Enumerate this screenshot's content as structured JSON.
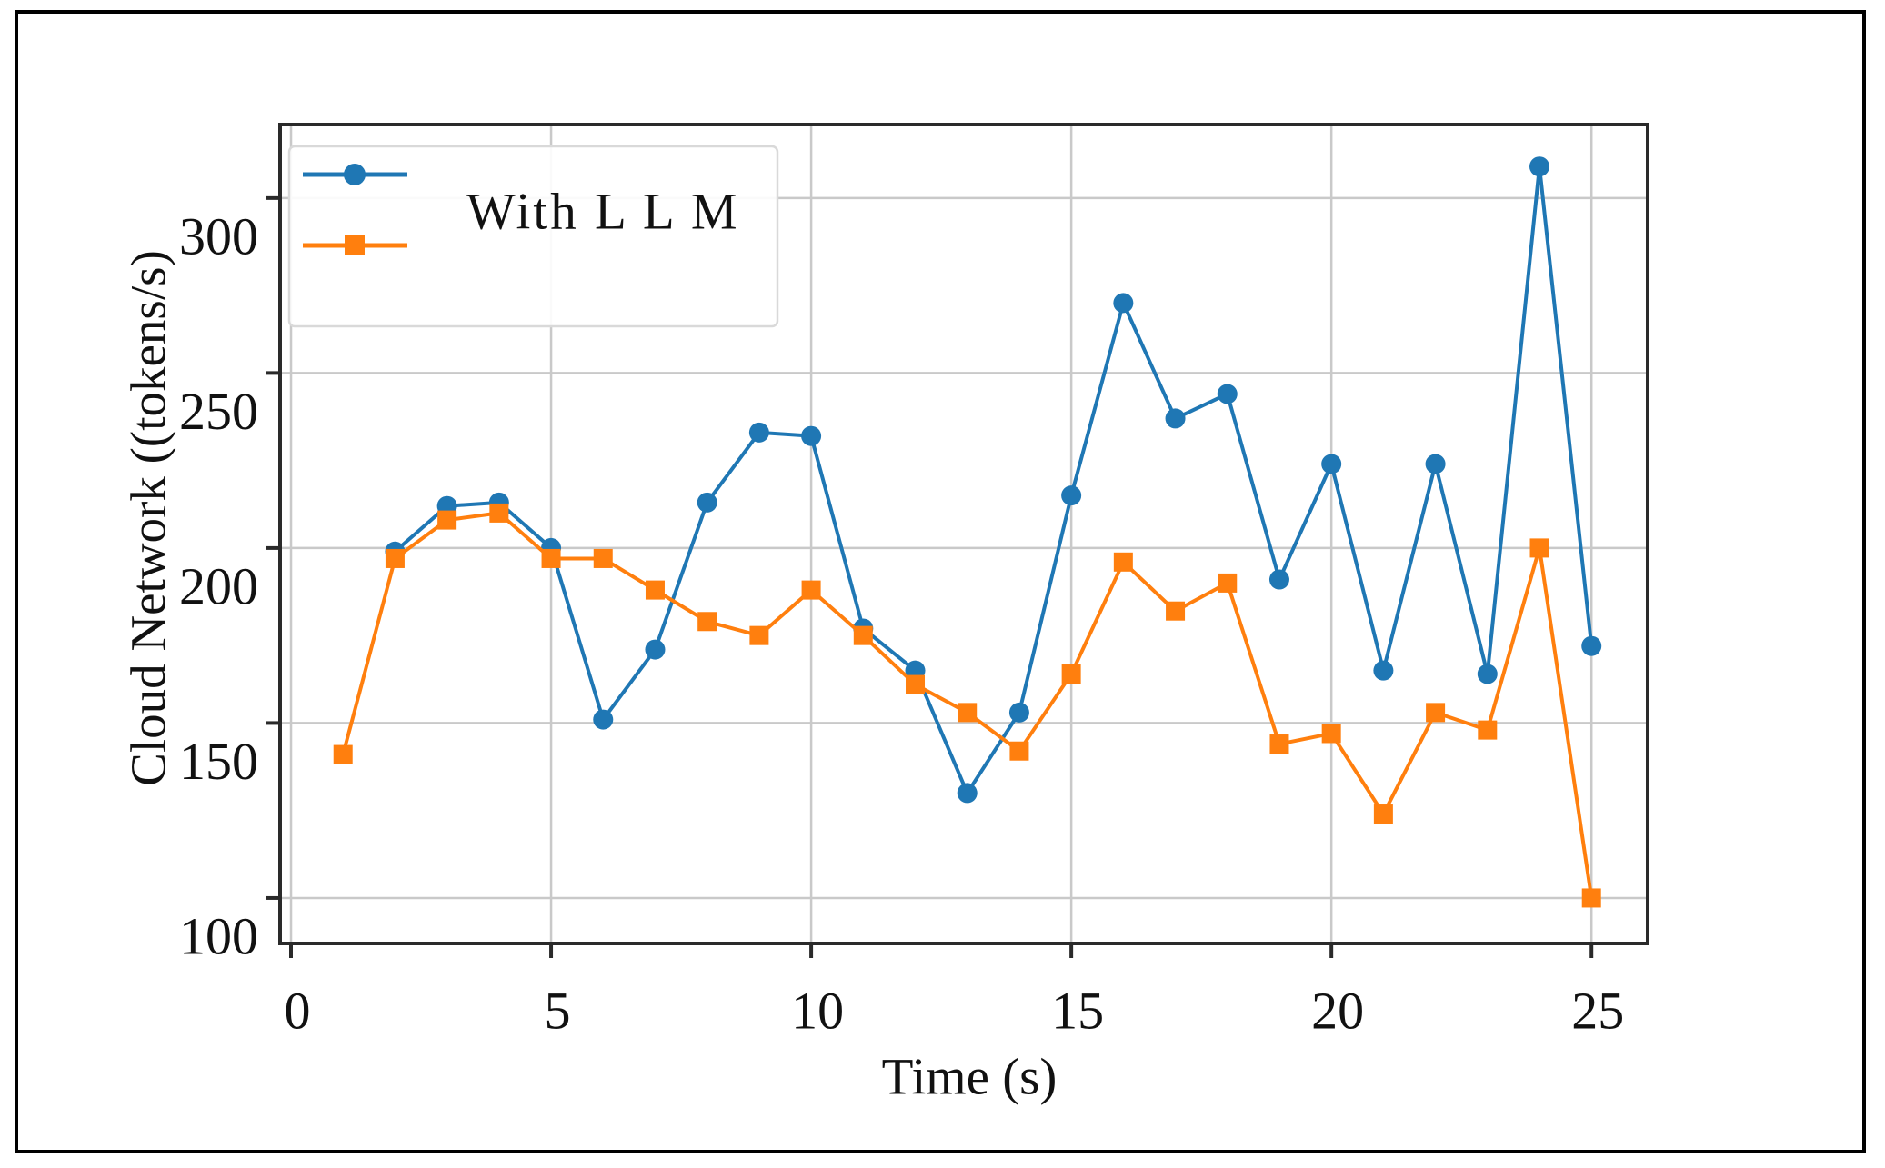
{
  "figure": {
    "background_color": "#ffffff",
    "border_color": "#000000",
    "grid_color": "#c9c9c9",
    "spine_color": "#2a2a2a"
  },
  "chart_data": {
    "type": "line",
    "title": "",
    "xlabel": "Time (s)",
    "ylabel": "Cloud Network ((tokens/s)",
    "x_ticks": [
      0,
      5,
      10,
      15,
      20,
      25
    ],
    "y_ticks": [
      100,
      150,
      200,
      250,
      300
    ],
    "xlim": [
      -0.21,
      26.08
    ],
    "ylim": [
      87,
      321
    ],
    "grid": true,
    "legend": {
      "position": "upper left",
      "entries": [
        {
          "label": "With  L L M",
          "color": "#1f77b4",
          "marker": "circle"
        },
        {
          "label": "",
          "color": "#ff7f0e",
          "marker": "square"
        }
      ]
    },
    "series": [
      {
        "name": "With  L L M",
        "color": "#1f77b4",
        "marker": "circle",
        "x": [
          2,
          3,
          4,
          5,
          6,
          7,
          8,
          9,
          10,
          11,
          12,
          13,
          14,
          15,
          16,
          17,
          18,
          19,
          20,
          21,
          22,
          23,
          24,
          25
        ],
        "y": [
          199,
          212,
          213,
          200,
          151,
          171,
          213,
          233,
          232,
          177,
          165,
          130,
          153,
          215,
          270,
          237,
          244,
          191,
          224,
          165,
          224,
          164,
          309,
          172
        ]
      },
      {
        "name": "",
        "color": "#ff7f0e",
        "marker": "square",
        "x": [
          1,
          2,
          3,
          4,
          5,
          6,
          7,
          8,
          9,
          10,
          11,
          12,
          13,
          14,
          15,
          16,
          17,
          18,
          19,
          20,
          21,
          22,
          23,
          24,
          25
        ],
        "y": [
          141,
          197,
          208,
          210,
          197,
          197,
          188,
          179,
          175,
          188,
          175,
          161,
          153,
          142,
          164,
          196,
          182,
          190,
          144,
          147,
          124,
          153,
          148,
          200,
          100
        ]
      }
    ]
  }
}
